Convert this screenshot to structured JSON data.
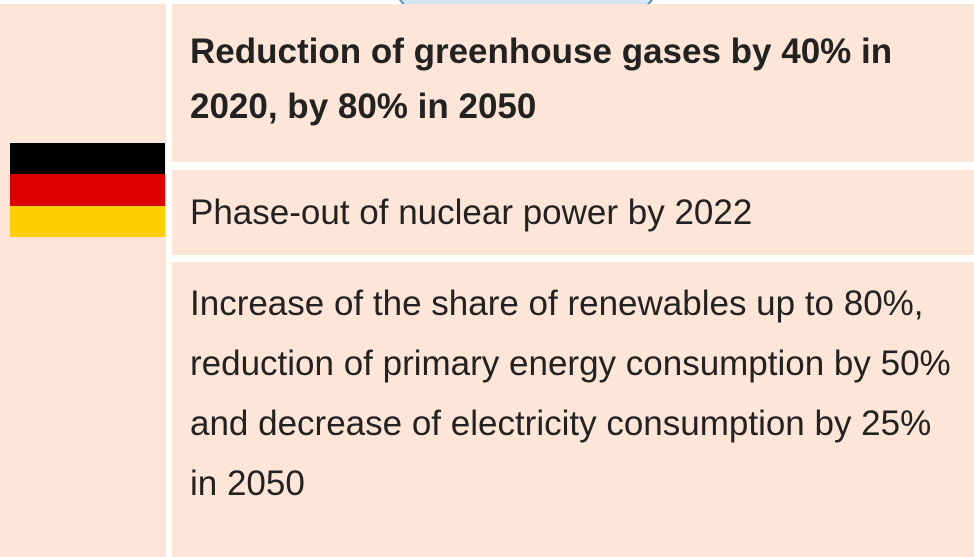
{
  "rows": [
    {
      "text": "Reduction of greenhouse gases by 40% in 2020, by 80% in 2050"
    },
    {
      "text": "Phase-out of nuclear power by 2022"
    },
    {
      "text": "Increase of the share of renewables up to 80%, reduction of primary energy consumption by 50% and decrease of electricity consumption by 25% in 2050"
    }
  ]
}
